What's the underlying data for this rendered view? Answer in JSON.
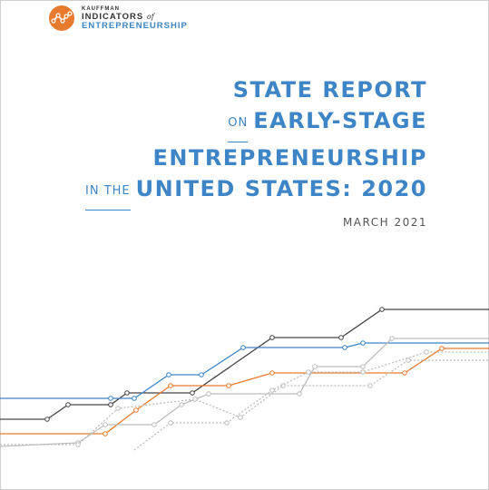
{
  "logo": {
    "line1": "KAUFFMAN",
    "line2": "INDICATORS",
    "line2_of": "of",
    "line3": "ENTREPRENEURSHIP",
    "icon": "network-node-icon"
  },
  "title": {
    "line1": "STATE REPORT",
    "line2_small": "ON",
    "line2": "EARLY-STAGE",
    "line3": "ENTREPRENEURSHIP",
    "line4_small": "IN THE",
    "line4": "UNITED STATES: 2020"
  },
  "date": "MARCH 2021",
  "colors": {
    "accent_blue": "#3d85c6",
    "dark": "#444444",
    "orange": "#e87a2e",
    "light_grey": "#bdbdbd"
  }
}
